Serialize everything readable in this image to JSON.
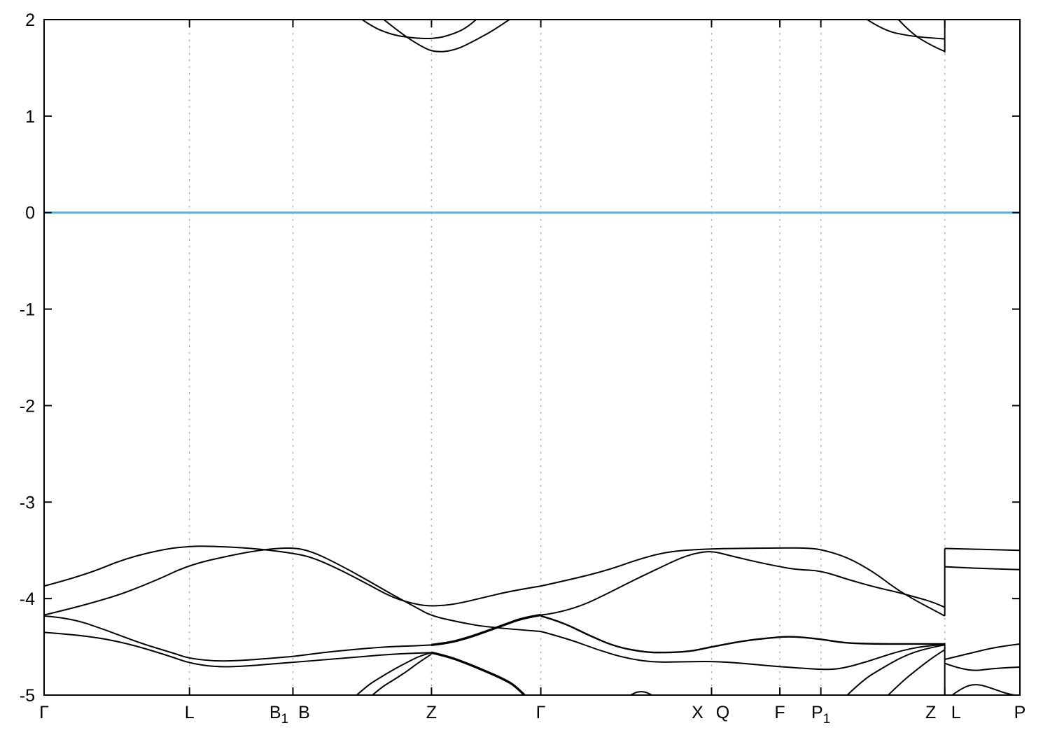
{
  "chart_data": {
    "type": "line",
    "subtype": "electronic-band-structure",
    "title": "",
    "xlabel": "",
    "ylabel": "",
    "xlim": [
      0,
      1
    ],
    "ylim": [
      -5,
      2
    ],
    "grid": "vertical-dotted",
    "legend": "none",
    "background": "#ffffff",
    "frame_color": "#000000",
    "gridline_color": "#ababab",
    "band_color": "#000000",
    "fermi_line": {
      "energy": 0,
      "color": "#5fafdd"
    },
    "y_ticks": [
      {
        "value": 2,
        "label": "2"
      },
      {
        "value": 1,
        "label": "1"
      },
      {
        "value": 0,
        "label": "0"
      },
      {
        "value": -1,
        "label": "-1"
      },
      {
        "value": -2,
        "label": "-2"
      },
      {
        "value": -3,
        "label": "-3"
      },
      {
        "value": -4,
        "label": "-4"
      },
      {
        "value": -5,
        "label": "-5"
      }
    ],
    "x_ticks": [
      0,
      0.149,
      0.255,
      0.397,
      0.509,
      0.684,
      0.754,
      0.796,
      0.923,
      1.0
    ],
    "x_labels": [
      {
        "main": "Γ",
        "sub": "",
        "k": 0,
        "align": "center"
      },
      {
        "main": "L",
        "sub": "",
        "k": 0.149,
        "align": "center"
      },
      {
        "main": "B",
        "sub": "1",
        "k": 0.255,
        "align": "before"
      },
      {
        "main": "B",
        "sub": "",
        "k": 0.255,
        "align": "after"
      },
      {
        "main": "Z",
        "sub": "",
        "k": 0.397,
        "align": "center"
      },
      {
        "main": "Γ",
        "sub": "",
        "k": 0.509,
        "align": "center"
      },
      {
        "main": "X",
        "sub": "",
        "k": 0.684,
        "align": "before"
      },
      {
        "main": "Q",
        "sub": "",
        "k": 0.684,
        "align": "after"
      },
      {
        "main": "F",
        "sub": "",
        "k": 0.754,
        "align": "center"
      },
      {
        "main": "P",
        "sub": "1",
        "k": 0.796,
        "align": "center"
      },
      {
        "main": "Z",
        "sub": "",
        "k": 0.923,
        "align": "before"
      },
      {
        "main": "L",
        "sub": "",
        "k": 0.923,
        "align": "after"
      },
      {
        "main": "P",
        "sub": "",
        "k": 1.0,
        "align": "center"
      }
    ],
    "series": [
      {
        "name": "conduction-band-z-upper",
        "width": 2,
        "points": [
          [
            0.319,
            2.05
          ],
          [
            0.335,
            1.93
          ],
          [
            0.357,
            1.84
          ],
          [
            0.378,
            1.81
          ],
          [
            0.397,
            1.8
          ],
          [
            0.414,
            1.83
          ],
          [
            0.435,
            1.92
          ],
          [
            0.448,
            2.05
          ]
        ]
      },
      {
        "name": "conduction-band-z-lower",
        "width": 2,
        "points": [
          [
            0.342,
            2.05
          ],
          [
            0.364,
            1.87
          ],
          [
            0.385,
            1.73
          ],
          [
            0.4,
            1.66
          ],
          [
            0.421,
            1.68
          ],
          [
            0.443,
            1.79
          ],
          [
            0.464,
            1.91
          ],
          [
            0.484,
            2.05
          ]
        ]
      },
      {
        "name": "conduction-band-zl-upper",
        "width": 2,
        "points": [
          [
            0.836,
            2.05
          ],
          [
            0.859,
            1.89
          ],
          [
            0.887,
            1.83
          ],
          [
            0.909,
            1.81
          ],
          [
            0.923,
            1.8
          ]
        ]
      },
      {
        "name": "conduction-band-zl-lower",
        "width": 2,
        "points": [
          [
            0.871,
            2.05
          ],
          [
            0.887,
            1.87
          ],
          [
            0.909,
            1.73
          ],
          [
            0.923,
            1.67
          ]
        ]
      },
      {
        "name": "zl-boundary-vertical-conduction",
        "width": 2,
        "points": [
          [
            0.923,
            2.0
          ],
          [
            0.923,
            1.66
          ]
        ]
      },
      {
        "name": "valence-band-1-left",
        "width": 2,
        "points": [
          [
            0,
            -3.87
          ],
          [
            0.041,
            -3.76
          ],
          [
            0.084,
            -3.58
          ],
          [
            0.127,
            -3.48
          ],
          [
            0.149,
            -3.46
          ],
          [
            0.163,
            -3.455
          ],
          [
            0.199,
            -3.47
          ],
          [
            0.225,
            -3.49
          ],
          [
            0.255,
            -3.53
          ],
          [
            0.274,
            -3.57
          ],
          [
            0.299,
            -3.68
          ],
          [
            0.328,
            -3.83
          ],
          [
            0.357,
            -3.99
          ],
          [
            0.381,
            -4.06
          ],
          [
            0.397,
            -4.08
          ],
          [
            0.421,
            -4.06
          ],
          [
            0.45,
            -3.99
          ],
          [
            0.479,
            -3.92
          ],
          [
            0.509,
            -3.87
          ]
        ]
      },
      {
        "name": "valence-band-2-left",
        "width": 2,
        "points": [
          [
            0,
            -4.17
          ],
          [
            0.062,
            -4.02
          ],
          [
            0.113,
            -3.82
          ],
          [
            0.149,
            -3.65
          ],
          [
            0.192,
            -3.55
          ],
          [
            0.225,
            -3.49
          ],
          [
            0.255,
            -3.47
          ],
          [
            0.274,
            -3.51
          ],
          [
            0.299,
            -3.63
          ],
          [
            0.328,
            -3.79
          ],
          [
            0.357,
            -3.96
          ],
          [
            0.381,
            -4.09
          ],
          [
            0.397,
            -4.18
          ],
          [
            0.428,
            -4.25
          ],
          [
            0.457,
            -4.3
          ],
          [
            0.509,
            -4.34
          ]
        ]
      },
      {
        "name": "valence-band-3-left",
        "width": 2,
        "points": [
          [
            0,
            -4.18
          ],
          [
            0.026,
            -4.2
          ],
          [
            0.062,
            -4.32
          ],
          [
            0.098,
            -4.46
          ],
          [
            0.134,
            -4.57
          ],
          [
            0.149,
            -4.62
          ],
          [
            0.177,
            -4.65
          ],
          [
            0.206,
            -4.64
          ],
          [
            0.242,
            -4.61
          ],
          [
            0.255,
            -4.6
          ],
          [
            0.285,
            -4.56
          ],
          [
            0.314,
            -4.53
          ],
          [
            0.35,
            -4.5
          ],
          [
            0.378,
            -4.49
          ],
          [
            0.397,
            -4.48
          ]
        ]
      },
      {
        "name": "valence-band-3-riser-z-to-gamma",
        "width": 3.4,
        "points": [
          [
            0.397,
            -4.48
          ],
          [
            0.414,
            -4.46
          ],
          [
            0.433,
            -4.41
          ],
          [
            0.453,
            -4.34
          ],
          [
            0.472,
            -4.27
          ],
          [
            0.491,
            -4.2
          ],
          [
            0.509,
            -4.17
          ]
        ]
      },
      {
        "name": "valence-band-4-left",
        "width": 2,
        "points": [
          [
            0,
            -4.35
          ],
          [
            0.041,
            -4.38
          ],
          [
            0.084,
            -4.46
          ],
          [
            0.127,
            -4.59
          ],
          [
            0.149,
            -4.67
          ],
          [
            0.177,
            -4.71
          ],
          [
            0.206,
            -4.7
          ],
          [
            0.242,
            -4.67
          ],
          [
            0.255,
            -4.66
          ],
          [
            0.292,
            -4.63
          ],
          [
            0.328,
            -4.6
          ],
          [
            0.363,
            -4.57
          ],
          [
            0.397,
            -4.56
          ]
        ]
      },
      {
        "name": "valence-band-4-dive-z-to-gamma",
        "width": 3.4,
        "points": [
          [
            0.397,
            -4.56
          ],
          [
            0.414,
            -4.6
          ],
          [
            0.433,
            -4.67
          ],
          [
            0.452,
            -4.75
          ],
          [
            0.47,
            -4.83
          ],
          [
            0.484,
            -4.91
          ],
          [
            0.497,
            -5.05
          ]
        ]
      },
      {
        "name": "valence-hump-z-a",
        "width": 2,
        "points": [
          [
            0.315,
            -5.05
          ],
          [
            0.33,
            -4.91
          ],
          [
            0.344,
            -4.82
          ],
          [
            0.359,
            -4.73
          ],
          [
            0.374,
            -4.65
          ],
          [
            0.386,
            -4.59
          ],
          [
            0.397,
            -4.56
          ]
        ]
      },
      {
        "name": "valence-hump-z-b",
        "width": 2,
        "points": [
          [
            0.331,
            -5.05
          ],
          [
            0.344,
            -4.93
          ],
          [
            0.357,
            -4.85
          ],
          [
            0.371,
            -4.76
          ],
          [
            0.384,
            -4.66
          ],
          [
            0.397,
            -4.575
          ]
        ]
      },
      {
        "name": "valence-bump-gamma-x",
        "width": 2,
        "points": [
          [
            0.596,
            -5.03
          ],
          [
            0.604,
            -4.98
          ],
          [
            0.611,
            -4.96
          ],
          [
            0.619,
            -4.975
          ],
          [
            0.628,
            -5.03
          ]
        ]
      },
      {
        "name": "valence-band-1-right",
        "width": 2,
        "points": [
          [
            0.509,
            -3.87
          ],
          [
            0.545,
            -3.79
          ],
          [
            0.579,
            -3.7
          ],
          [
            0.607,
            -3.6
          ],
          [
            0.632,
            -3.53
          ],
          [
            0.654,
            -3.5
          ],
          [
            0.684,
            -3.485
          ],
          [
            0.708,
            -3.48
          ],
          [
            0.754,
            -3.475
          ],
          [
            0.78,
            -3.475
          ],
          [
            0.796,
            -3.49
          ],
          [
            0.823,
            -3.57
          ],
          [
            0.851,
            -3.73
          ],
          [
            0.873,
            -3.9
          ],
          [
            0.895,
            -4.03
          ],
          [
            0.912,
            -4.12
          ],
          [
            0.923,
            -4.18
          ]
        ]
      },
      {
        "name": "valence-band-2-right",
        "width": 2,
        "points": [
          [
            0.509,
            -4.17
          ],
          [
            0.52,
            -4.16
          ],
          [
            0.55,
            -4.08
          ],
          [
            0.579,
            -3.94
          ],
          [
            0.604,
            -3.81
          ],
          [
            0.629,
            -3.69
          ],
          [
            0.654,
            -3.57
          ],
          [
            0.672,
            -3.52
          ],
          [
            0.686,
            -3.51
          ],
          [
            0.701,
            -3.55
          ],
          [
            0.73,
            -3.62
          ],
          [
            0.754,
            -3.67
          ],
          [
            0.772,
            -3.7
          ],
          [
            0.796,
            -3.71
          ],
          [
            0.823,
            -3.8
          ],
          [
            0.851,
            -3.88
          ],
          [
            0.873,
            -3.93
          ],
          [
            0.895,
            -3.99
          ],
          [
            0.912,
            -4.04
          ],
          [
            0.923,
            -4.09
          ]
        ]
      },
      {
        "name": "valence-band-3-right",
        "width": 2.4,
        "points": [
          [
            0.509,
            -4.18
          ],
          [
            0.53,
            -4.24
          ],
          [
            0.558,
            -4.38
          ],
          [
            0.586,
            -4.5
          ],
          [
            0.615,
            -4.555
          ],
          [
            0.633,
            -4.56
          ],
          [
            0.661,
            -4.55
          ],
          [
            0.684,
            -4.5
          ],
          [
            0.716,
            -4.44
          ],
          [
            0.74,
            -4.41
          ],
          [
            0.765,
            -4.39
          ],
          [
            0.796,
            -4.42
          ],
          [
            0.82,
            -4.46
          ],
          [
            0.851,
            -4.47
          ],
          [
            0.888,
            -4.47
          ],
          [
            0.923,
            -4.47
          ]
        ]
      },
      {
        "name": "valence-band-4-right",
        "width": 2,
        "points": [
          [
            0.509,
            -4.34
          ],
          [
            0.538,
            -4.42
          ],
          [
            0.567,
            -4.53
          ],
          [
            0.597,
            -4.62
          ],
          [
            0.625,
            -4.66
          ],
          [
            0.654,
            -4.655
          ],
          [
            0.686,
            -4.65
          ],
          [
            0.716,
            -4.67
          ],
          [
            0.747,
            -4.7
          ],
          [
            0.775,
            -4.72
          ],
          [
            0.796,
            -4.735
          ],
          [
            0.816,
            -4.73
          ],
          [
            0.845,
            -4.65
          ],
          [
            0.874,
            -4.55
          ],
          [
            0.902,
            -4.49
          ],
          [
            0.923,
            -4.475
          ]
        ]
      },
      {
        "name": "valence-steep-1",
        "width": 2,
        "points": [
          [
            0.818,
            -5.05
          ],
          [
            0.838,
            -4.85
          ],
          [
            0.859,
            -4.72
          ],
          [
            0.88,
            -4.6
          ],
          [
            0.902,
            -4.52
          ],
          [
            0.923,
            -4.48
          ]
        ]
      },
      {
        "name": "valence-steep-2",
        "width": 2,
        "points": [
          [
            0.86,
            -5.05
          ],
          [
            0.877,
            -4.88
          ],
          [
            0.895,
            -4.73
          ],
          [
            0.912,
            -4.6
          ],
          [
            0.923,
            -4.53
          ]
        ]
      },
      {
        "name": "zl-boundary-vertical-upper",
        "width": 2,
        "points": [
          [
            0.923,
            -3.48
          ],
          [
            0.923,
            -4.18
          ]
        ]
      },
      {
        "name": "zl-boundary-vertical-lower",
        "width": 2,
        "points": [
          [
            0.923,
            -4.46
          ],
          [
            0.923,
            -5.0
          ]
        ]
      },
      {
        "name": "lp-band-flat-1",
        "width": 2,
        "points": [
          [
            0.923,
            -3.48
          ],
          [
            0.962,
            -3.49
          ],
          [
            1.0,
            -3.5
          ]
        ]
      },
      {
        "name": "lp-band-flat-2",
        "width": 2,
        "points": [
          [
            0.923,
            -3.67
          ],
          [
            0.962,
            -3.69
          ],
          [
            1.0,
            -3.7
          ]
        ]
      },
      {
        "name": "lp-band-rise",
        "width": 2,
        "points": [
          [
            0.923,
            -4.63
          ],
          [
            0.952,
            -4.56
          ],
          [
            0.976,
            -4.5
          ],
          [
            1.0,
            -4.47
          ]
        ]
      },
      {
        "name": "lp-band-dip",
        "width": 2,
        "points": [
          [
            0.923,
            -4.67
          ],
          [
            0.947,
            -4.76
          ],
          [
            0.974,
            -4.72
          ],
          [
            1.0,
            -4.71
          ]
        ]
      },
      {
        "name": "lp-band-hump",
        "width": 2,
        "points": [
          [
            0.928,
            -5.02
          ],
          [
            0.941,
            -4.92
          ],
          [
            0.956,
            -4.88
          ],
          [
            0.974,
            -4.94
          ],
          [
            0.988,
            -4.99
          ],
          [
            1.0,
            -5.01
          ]
        ]
      }
    ]
  }
}
